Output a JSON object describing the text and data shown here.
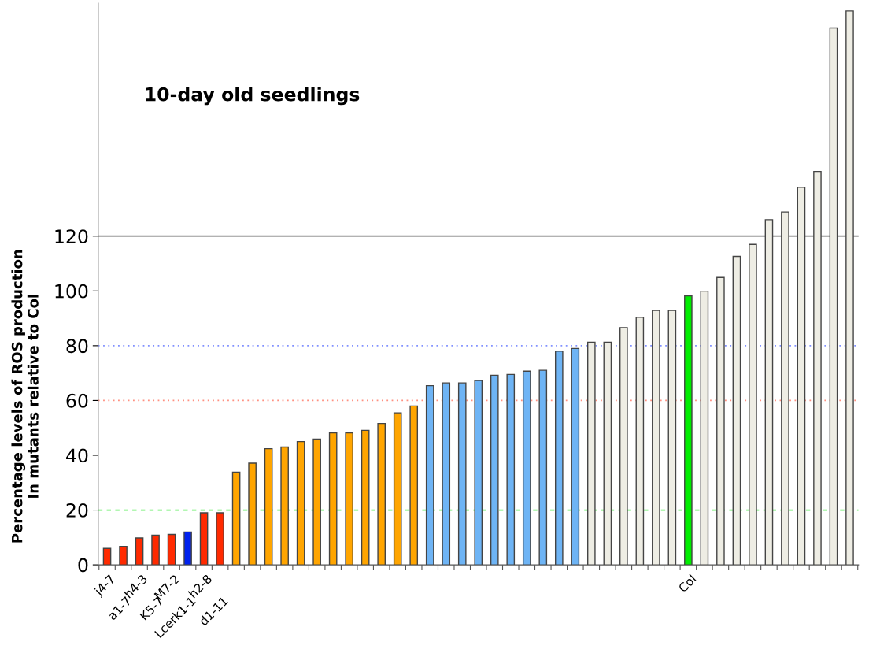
{
  "chart_data": {
    "type": "bar",
    "title": "10-day old seedlings",
    "ylabel": "Percentage levels of ROS production\nIn mutants relative to Col",
    "categories": [
      "j4-7",
      "a1-7",
      "h4-3",
      "K5-7",
      "M7-2",
      "Lcerk1-1",
      "h2-8",
      "d1-11",
      null,
      null,
      null,
      null,
      null,
      null,
      null,
      null,
      null,
      null,
      null,
      null,
      null,
      null,
      null,
      null,
      null,
      null,
      null,
      null,
      null,
      null,
      null,
      null,
      null,
      null,
      null,
      null,
      "Col",
      null,
      null,
      null,
      null,
      null,
      null,
      null,
      null,
      null,
      null
    ],
    "values": [
      6,
      6.7,
      9.8,
      10.8,
      11.1,
      12,
      19,
      19,
      33.8,
      37.1,
      42.4,
      43,
      45,
      45.9,
      48.2,
      48.2,
      49.1,
      51.6,
      55.5,
      58,
      65.4,
      66.4,
      66.4,
      67.3,
      69.2,
      69.5,
      70.7,
      71,
      78,
      79,
      81.3,
      81.3,
      86.6,
      90.4,
      92.9,
      92.9,
      98.2,
      99.9,
      104.9,
      112.6,
      117,
      126,
      128.8,
      137.8,
      143.6,
      196,
      202.2
    ],
    "colors": [
      "#ff2a00",
      "#ff2a00",
      "#ff2a00",
      "#ff2a00",
      "#ff2a00",
      "#0022ee",
      "#ff2a00",
      "#ff2a00",
      "#ffa500",
      "#ffa500",
      "#ffa500",
      "#ffa500",
      "#ffa500",
      "#ffa500",
      "#ffa500",
      "#ffa500",
      "#ffa500",
      "#ffa500",
      "#ffa500",
      "#ffa500",
      "#6eb4f5",
      "#6eb4f5",
      "#6eb4f5",
      "#6eb4f5",
      "#6eb4f5",
      "#6eb4f5",
      "#6eb4f5",
      "#6eb4f5",
      "#6eb4f5",
      "#6eb4f5",
      "#eeede4",
      "#eeede4",
      "#eeede4",
      "#eeede4",
      "#eeede4",
      "#eeede4",
      "#00ee00",
      "#eeede4",
      "#eeede4",
      "#eeede4",
      "#eeede4",
      "#eeede4",
      "#eeede4",
      "#eeede4",
      "#eeede4",
      "#eeede4",
      "#eeede4"
    ],
    "ylim": [
      0,
      205
    ],
    "yticks": [
      0,
      20,
      40,
      60,
      80,
      100,
      120
    ],
    "ref_lines": [
      {
        "axis": "y",
        "value": 20,
        "color": "#66ee66",
        "line_style": "dashed"
      },
      {
        "axis": "y",
        "value": 60,
        "color": "#ff9080",
        "line_style": "dotted"
      },
      {
        "axis": "y",
        "value": 80,
        "color": "#8090ff",
        "line_style": "dotted"
      },
      {
        "axis": "y",
        "value": 120,
        "color": "#999999",
        "line_style": "solid"
      }
    ],
    "grid": false
  }
}
